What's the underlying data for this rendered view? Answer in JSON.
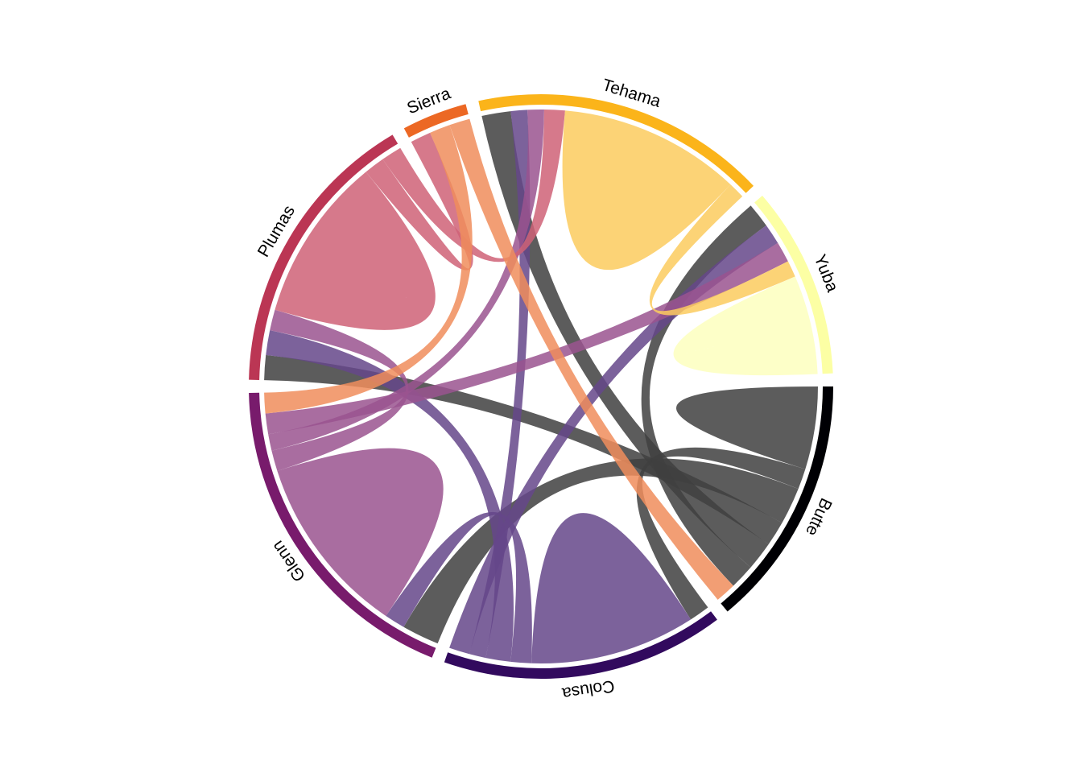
{
  "chart_data": {
    "type": "chord",
    "sectors": [
      {
        "name": "Butte",
        "color": "#000004",
        "chord_color": "#404040"
      },
      {
        "name": "Colusa",
        "color": "#320A5E",
        "chord_color": "#65478A"
      },
      {
        "name": "Glenn",
        "color": "#781B6C",
        "chord_color": "#9A548F"
      },
      {
        "name": "Plumas",
        "color": "#BB3654",
        "chord_color": "#CF6277"
      },
      {
        "name": "Sierra",
        "color": "#EC6824",
        "chord_color": "#F08D5C"
      },
      {
        "name": "Tehama",
        "color": "#FBB41A",
        "chord_color": "#FCCB5E"
      },
      {
        "name": "Yuba",
        "color": "#FCFFA4",
        "chord_color": "#FDFFBE"
      }
    ],
    "sector_order": [
      "Butte",
      "Colusa",
      "Glenn",
      "Plumas",
      "Sierra",
      "Tehama",
      "Yuba"
    ],
    "flows": [
      {
        "from": "Butte",
        "to": "Butte",
        "value": 1.0
      },
      {
        "from": "Butte",
        "to": "Colusa",
        "value": 0.5
      },
      {
        "from": "Butte",
        "to": "Glenn",
        "value": 0.9
      },
      {
        "from": "Butte",
        "to": "Plumas",
        "value": 0.6
      },
      {
        "from": "Butte",
        "to": "Tehama",
        "value": 0.7
      },
      {
        "from": "Butte",
        "to": "Yuba",
        "value": 0.6
      },
      {
        "from": "Colusa",
        "to": "Colusa",
        "value": 2.0
      },
      {
        "from": "Colusa",
        "to": "Glenn",
        "value": 0.5
      },
      {
        "from": "Colusa",
        "to": "Plumas",
        "value": 0.6
      },
      {
        "from": "Colusa",
        "to": "Tehama",
        "value": 0.4
      },
      {
        "from": "Colusa",
        "to": "Yuba",
        "value": 0.5
      },
      {
        "from": "Glenn",
        "to": "Glenn",
        "value": 2.2
      },
      {
        "from": "Glenn",
        "to": "Plumas",
        "value": 0.5
      },
      {
        "from": "Glenn",
        "to": "Tehama",
        "value": 0.4
      },
      {
        "from": "Glenn",
        "to": "Yuba",
        "value": 0.5
      },
      {
        "from": "Plumas",
        "to": "Plumas",
        "value": 2.0
      },
      {
        "from": "Plumas",
        "to": "Sierra",
        "value": 0.5
      },
      {
        "from": "Plumas",
        "to": "Tehama",
        "value": 0.5
      },
      {
        "from": "Sierra",
        "to": "Glenn",
        "value": 0.5
      },
      {
        "from": "Sierra",
        "to": "Butte",
        "value": 0.5
      },
      {
        "from": "Tehama",
        "to": "Tehama",
        "value": 2.2
      },
      {
        "from": "Tehama",
        "to": "Yuba",
        "value": 0.4
      },
      {
        "from": "Yuba",
        "to": "Yuba",
        "value": 1.2
      }
    ]
  }
}
